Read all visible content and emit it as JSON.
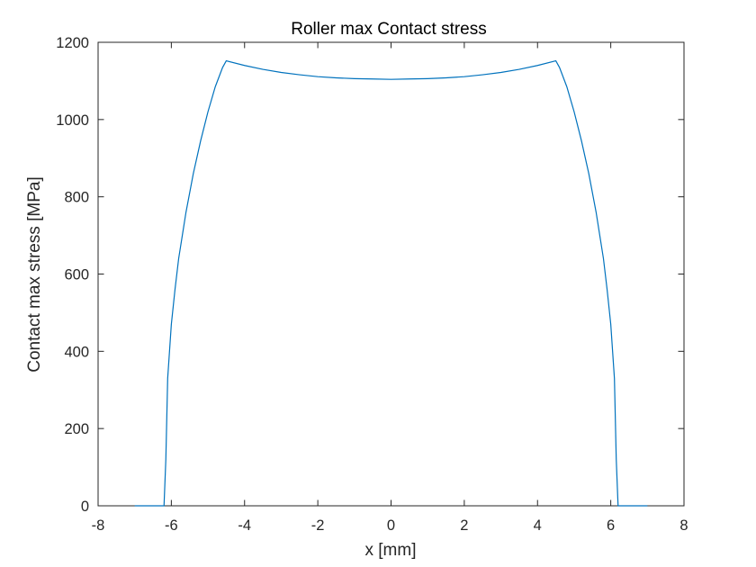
{
  "chart_data": {
    "type": "line",
    "title": "Roller max Contact stress",
    "xlabel": "x [mm]",
    "ylabel": "Contact max stress [MPa]",
    "xlim": [
      -8,
      8
    ],
    "ylim": [
      0,
      1200
    ],
    "xticks": [
      -8,
      -6,
      -4,
      -2,
      0,
      2,
      4,
      6,
      8
    ],
    "yticks": [
      0,
      200,
      400,
      600,
      800,
      1000,
      1200
    ],
    "xtick_labels": [
      "-8",
      "-6",
      "-4",
      "-2",
      "0",
      "2",
      "4",
      "6",
      "8"
    ],
    "ytick_labels": [
      "0",
      "200",
      "400",
      "600",
      "800",
      "1000",
      "1200"
    ],
    "grid": false,
    "line_color": "#0072BD",
    "series": [
      {
        "x": [
          -7.0,
          -6.8,
          -6.6,
          -6.4,
          -6.2,
          -6.15,
          -6.1,
          -6.0,
          -5.9,
          -5.8,
          -5.6,
          -5.4,
          -5.2,
          -5.0,
          -4.8,
          -4.6,
          -4.5,
          -4.0,
          -3.5,
          -3.0,
          -2.5,
          -2.0,
          -1.5,
          -1.0,
          -0.5,
          0.0,
          0.5,
          1.0,
          1.5,
          2.0,
          2.5,
          3.0,
          3.5,
          4.0,
          4.5,
          4.6,
          4.8,
          5.0,
          5.2,
          5.4,
          5.6,
          5.8,
          5.9,
          6.0,
          6.1,
          6.15,
          6.2,
          6.4,
          6.6,
          6.8,
          7.0
        ],
        "y": [
          0,
          0,
          0,
          0,
          0,
          120,
          330,
          470,
          560,
          640,
          760,
          860,
          945,
          1020,
          1085,
          1135,
          1152,
          1140,
          1130,
          1122,
          1116,
          1111,
          1108,
          1106,
          1105,
          1104,
          1105,
          1106,
          1108,
          1111,
          1116,
          1122,
          1130,
          1140,
          1152,
          1135,
          1085,
          1020,
          945,
          860,
          760,
          640,
          560,
          470,
          330,
          120,
          0,
          0,
          0,
          0,
          0
        ]
      }
    ]
  }
}
